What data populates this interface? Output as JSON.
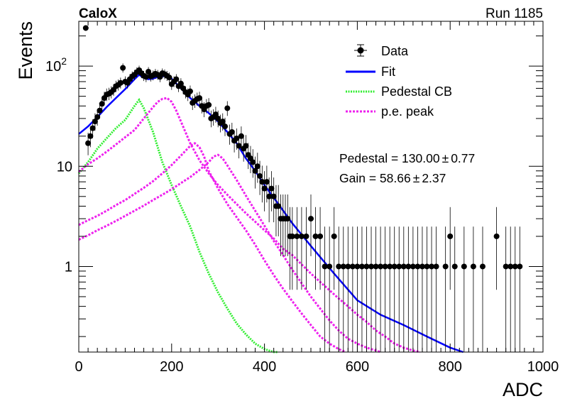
{
  "header": {
    "left_label": "CaloX",
    "right_label": "Run 1185"
  },
  "chart_data": {
    "type": "scatter",
    "xlabel": "ADC",
    "ylabel": "Events",
    "xlim": [
      0,
      1000
    ],
    "ylim": [
      0.14,
      280
    ],
    "yscale": "log",
    "x_ticks": [
      "0",
      "200",
      "400",
      "600",
      "800",
      "1000"
    ],
    "y_ticks": [
      "1",
      "10",
      "10^2"
    ],
    "legend_position": "top-right",
    "legend": [
      {
        "label": "Data",
        "style": "marker"
      },
      {
        "label": "Fit",
        "style": "line"
      },
      {
        "label": "Pedestal CB",
        "style": "dotted"
      },
      {
        "label": "p.e. peak",
        "style": "dotted"
      }
    ],
    "annotations": {
      "pedestal": {
        "label": "Pedestal = ",
        "value": "130.00",
        "pm": "±",
        "err": "0.77"
      },
      "gain": {
        "label": "Gain = ",
        "value": "58.66",
        "pm": "±",
        "err": "2.37"
      }
    },
    "colors": {
      "data": "#000000",
      "fit": "#0000ff",
      "pedestal": "#33ee33",
      "pe": "#ee22ee"
    },
    "series": [
      {
        "name": "Data",
        "kind": "points",
        "x": [
          15,
          20,
          25,
          30,
          35,
          40,
          45,
          50,
          55,
          60,
          65,
          70,
          75,
          80,
          85,
          90,
          95,
          100,
          105,
          110,
          115,
          120,
          125,
          130,
          135,
          140,
          145,
          150,
          155,
          160,
          165,
          170,
          175,
          180,
          185,
          190,
          195,
          200,
          205,
          210,
          215,
          220,
          225,
          230,
          235,
          240,
          245,
          250,
          255,
          260,
          265,
          270,
          275,
          280,
          285,
          290,
          295,
          300,
          305,
          310,
          315,
          320,
          325,
          330,
          335,
          340,
          345,
          350,
          355,
          360,
          365,
          370,
          375,
          380,
          385,
          390,
          395,
          400,
          405,
          410,
          415,
          420,
          425,
          430,
          435,
          440,
          445,
          450,
          455,
          460,
          470,
          480,
          490,
          500,
          510,
          520,
          530,
          540,
          550,
          560,
          570,
          580,
          590,
          600,
          610,
          620,
          630,
          640,
          650,
          660,
          670,
          680,
          690,
          700,
          710,
          720,
          730,
          740,
          750,
          760,
          770,
          790,
          800,
          810,
          830,
          850,
          870,
          900,
          920,
          930,
          940,
          950
        ],
        "y": [
          240,
          17,
          20,
          24,
          28,
          31,
          36,
          42,
          48,
          52,
          53,
          55,
          58,
          63,
          65,
          68,
          96,
          70,
          68,
          74,
          79,
          82,
          87,
          91,
          85,
          80,
          78,
          88,
          79,
          81,
          84,
          82,
          78,
          85,
          83,
          80,
          77,
          66,
          70,
          74,
          63,
          67,
          60,
          55,
          52,
          56,
          43,
          45,
          47,
          48,
          40,
          37,
          40,
          41,
          30,
          31,
          33,
          30,
          27,
          28,
          25,
          38,
          21,
          22,
          18,
          19,
          16,
          20,
          15,
          16,
          13,
          12,
          11,
          9,
          10,
          8,
          7,
          6,
          7,
          5,
          6,
          5,
          4,
          4,
          3,
          3,
          3,
          3,
          2,
          2,
          2,
          2,
          2,
          3,
          2,
          2,
          1,
          1,
          2,
          1,
          1,
          1,
          1,
          1,
          1,
          1,
          1,
          1,
          1,
          1,
          1,
          1,
          1,
          1,
          1,
          1,
          1,
          1,
          1,
          1,
          1,
          1,
          2,
          1,
          1,
          1,
          1,
          2,
          1,
          1,
          1,
          1
        ],
        "color": "#000000"
      },
      {
        "name": "Fit",
        "kind": "line",
        "x": [
          0,
          20,
          40,
          60,
          80,
          100,
          120,
          130,
          140,
          150,
          160,
          170,
          180,
          190,
          200,
          220,
          240,
          260,
          280,
          300,
          320,
          340,
          360,
          380,
          400,
          430,
          460,
          500,
          550,
          600,
          650,
          700,
          750,
          800,
          828
        ],
        "y": [
          21,
          25,
          31,
          39,
          48,
          59,
          74,
          82,
          76,
          74,
          75,
          78,
          79,
          80,
          75,
          60,
          48,
          40,
          34,
          28,
          22,
          17,
          12,
          9,
          6.5,
          4.2,
          2.7,
          1.6,
          0.85,
          0.46,
          0.33,
          0.26,
          0.2,
          0.155,
          0.14
        ],
        "color": "#0000ff"
      },
      {
        "name": "Pedestal CB",
        "kind": "dotted",
        "x": [
          0,
          20,
          40,
          60,
          80,
          100,
          120,
          130,
          140,
          160,
          180,
          200,
          220,
          240,
          260,
          280,
          300,
          320,
          340,
          360,
          380,
          400,
          420,
          428
        ],
        "y": [
          8.5,
          11,
          15,
          19,
          24,
          29,
          40,
          46,
          38,
          22,
          11,
          6.5,
          4,
          2.5,
          1.4,
          0.85,
          0.55,
          0.38,
          0.27,
          0.21,
          0.17,
          0.15,
          0.14,
          0.14
        ],
        "color": "#33ee33"
      },
      {
        "name": "p.e. peak 1",
        "kind": "dotted",
        "x": [
          0,
          20,
          40,
          60,
          80,
          100,
          120,
          140,
          160,
          170,
          180,
          190,
          200,
          210,
          220,
          240,
          260,
          280,
          300,
          320,
          340,
          360,
          380,
          400,
          420,
          440,
          460,
          480,
          500,
          520,
          540,
          560,
          580,
          600,
          620,
          640,
          660,
          680,
          700,
          720,
          735
        ],
        "y": [
          8.8,
          10.5,
          12,
          14,
          16.5,
          19.5,
          23,
          30,
          39,
          44,
          47,
          48,
          44,
          36,
          28,
          17,
          11.5,
          8.5,
          6.5,
          5.2,
          4.2,
          3.4,
          2.8,
          2.3,
          1.9,
          1.5,
          1.3,
          1.05,
          0.85,
          0.7,
          0.58,
          0.48,
          0.4,
          0.33,
          0.28,
          0.23,
          0.2,
          0.17,
          0.155,
          0.145,
          0.14
        ],
        "color": "#ee22ee"
      },
      {
        "name": "p.e. peak 2",
        "kind": "dotted",
        "x": [
          0,
          20,
          40,
          60,
          80,
          100,
          120,
          140,
          160,
          180,
          200,
          220,
          240,
          250,
          260,
          270,
          280,
          300,
          320,
          340,
          360,
          380,
          400,
          420,
          440,
          460,
          480,
          500,
          520,
          540,
          560,
          575
        ],
        "y": [
          2.6,
          2.9,
          3.2,
          3.6,
          4.1,
          4.6,
          5.3,
          6.1,
          7.1,
          8.5,
          10.3,
          12.8,
          16,
          17,
          15.5,
          12.5,
          9,
          6,
          4.2,
          3.1,
          2.3,
          1.65,
          1.15,
          0.82,
          0.6,
          0.45,
          0.34,
          0.26,
          0.2,
          0.17,
          0.15,
          0.14
        ],
        "color": "#ee22ee"
      },
      {
        "name": "p.e. peak 3",
        "kind": "dotted",
        "x": [
          0,
          20,
          40,
          60,
          80,
          100,
          120,
          140,
          160,
          180,
          200,
          220,
          240,
          260,
          280,
          290,
          300,
          310,
          320,
          340,
          360,
          380,
          400,
          420,
          440,
          460,
          480,
          500,
          520,
          540,
          560,
          580,
          600,
          620,
          640,
          650
        ],
        "y": [
          1.85,
          2.05,
          2.3,
          2.55,
          2.85,
          3.2,
          3.6,
          4.05,
          4.6,
          5.2,
          5.9,
          6.8,
          7.8,
          9.2,
          11,
          12.5,
          13,
          12,
          10.2,
          7.3,
          5.1,
          3.6,
          2.55,
          1.8,
          1.3,
          0.93,
          0.68,
          0.5,
          0.38,
          0.29,
          0.23,
          0.19,
          0.17,
          0.155,
          0.145,
          0.14
        ],
        "color": "#ee22ee"
      }
    ]
  }
}
